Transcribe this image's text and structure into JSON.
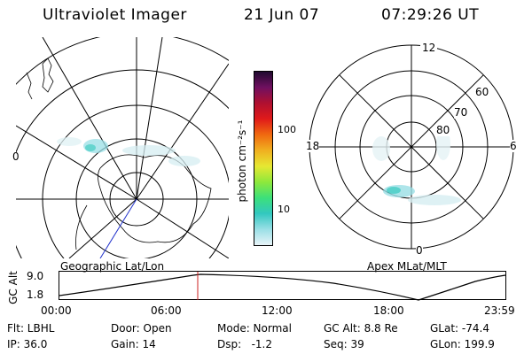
{
  "header": {
    "instrument": "Ultraviolet Imager",
    "date": "21 Jun 07",
    "time": "07:29:26 UT"
  },
  "left_panel": {
    "caption": "Geographic Lat/Lon",
    "edge_label": "0"
  },
  "right_panel": {
    "caption": "Apex MLat/MLT",
    "mlt_labels": {
      "top": "12",
      "bottom": "0",
      "left": "18",
      "right": "6"
    },
    "lat_labels": [
      "60",
      "70",
      "80"
    ]
  },
  "colorbar": {
    "unit_label": "photon cm⁻²s⁻¹",
    "ticks": [
      "100",
      "10"
    ],
    "colors": [
      "#e8f4f8",
      "#9adfe6",
      "#32c8c0",
      "#3ce07a",
      "#8ee83c",
      "#e6e832",
      "#f0b020",
      "#f06a10",
      "#e01a1a",
      "#b01030",
      "#701060",
      "#200a30"
    ]
  },
  "alt_plot": {
    "ylabel": "GC Alt",
    "yticks": [
      "9.0",
      "1.8"
    ],
    "xticks": [
      "00:00",
      "06:00",
      "12:00",
      "18:00",
      "23:59"
    ],
    "cursor_time": "07:29"
  },
  "info": {
    "flt": "Flt: LBHL",
    "ip": "IP: 36.0",
    "door": "Door: Open",
    "gain": "Gain: 14",
    "mode": "Mode: Normal",
    "dsp": "Dsp:   -1.2",
    "gcalt": "GC Alt: 8.8 Re",
    "seq": "Seq: 39",
    "glat": "GLat: -74.4",
    "glon": "GLon: 199.9"
  }
}
